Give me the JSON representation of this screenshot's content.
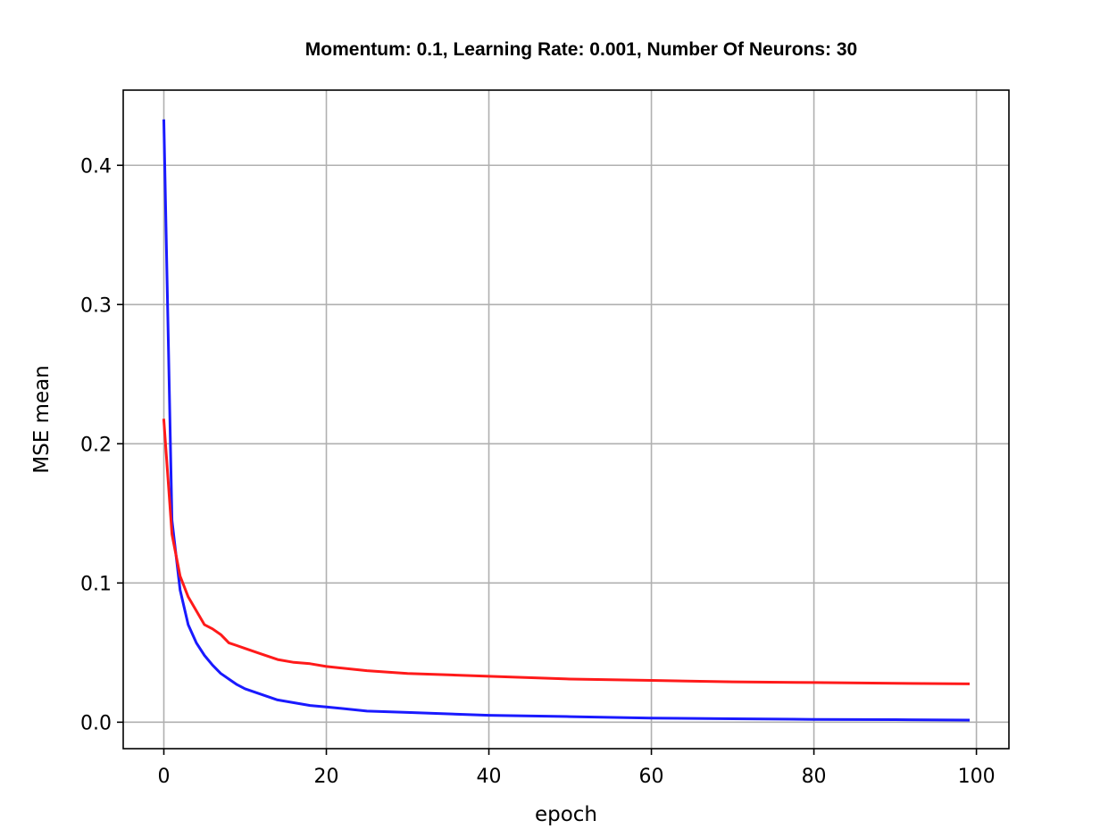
{
  "chart_data": {
    "type": "line",
    "title": "Momentum: 0.1, Learning Rate: 0.001, Number Of Neurons: 30",
    "xlabel": "epoch",
    "ylabel": "MSE mean",
    "xlim": [
      -5,
      104
    ],
    "ylim": [
      -0.019,
      0.454
    ],
    "xticks": [
      0,
      20,
      40,
      60,
      80,
      100
    ],
    "yticks": [
      0.0,
      0.1,
      0.2,
      0.3,
      0.4
    ],
    "xtick_labels": [
      "0",
      "20",
      "40",
      "60",
      "80",
      "100"
    ],
    "ytick_labels": [
      "0.0",
      "0.1",
      "0.2",
      "0.3",
      "0.4"
    ],
    "grid": true,
    "series": [
      {
        "color": "#1a1aff",
        "x": [
          0,
          1,
          2,
          3,
          4,
          5,
          6,
          7,
          8,
          9,
          10,
          12,
          14,
          16,
          18,
          20,
          25,
          30,
          35,
          40,
          50,
          60,
          70,
          80,
          90,
          99
        ],
        "y": [
          0.432,
          0.145,
          0.095,
          0.07,
          0.057,
          0.048,
          0.041,
          0.035,
          0.031,
          0.027,
          0.024,
          0.02,
          0.016,
          0.014,
          0.012,
          0.011,
          0.008,
          0.007,
          0.006,
          0.005,
          0.004,
          0.003,
          0.0025,
          0.002,
          0.0018,
          0.0015
        ]
      },
      {
        "color": "#ff1a1a",
        "x": [
          0,
          1,
          2,
          3,
          4,
          5,
          6,
          7,
          8,
          9,
          10,
          12,
          14,
          16,
          18,
          20,
          25,
          30,
          35,
          40,
          50,
          60,
          70,
          80,
          90,
          99
        ],
        "y": [
          0.217,
          0.135,
          0.105,
          0.09,
          0.08,
          0.07,
          0.067,
          0.063,
          0.057,
          0.055,
          0.053,
          0.049,
          0.045,
          0.043,
          0.042,
          0.04,
          0.037,
          0.035,
          0.034,
          0.033,
          0.031,
          0.03,
          0.029,
          0.0285,
          0.028,
          0.0275
        ]
      }
    ]
  }
}
